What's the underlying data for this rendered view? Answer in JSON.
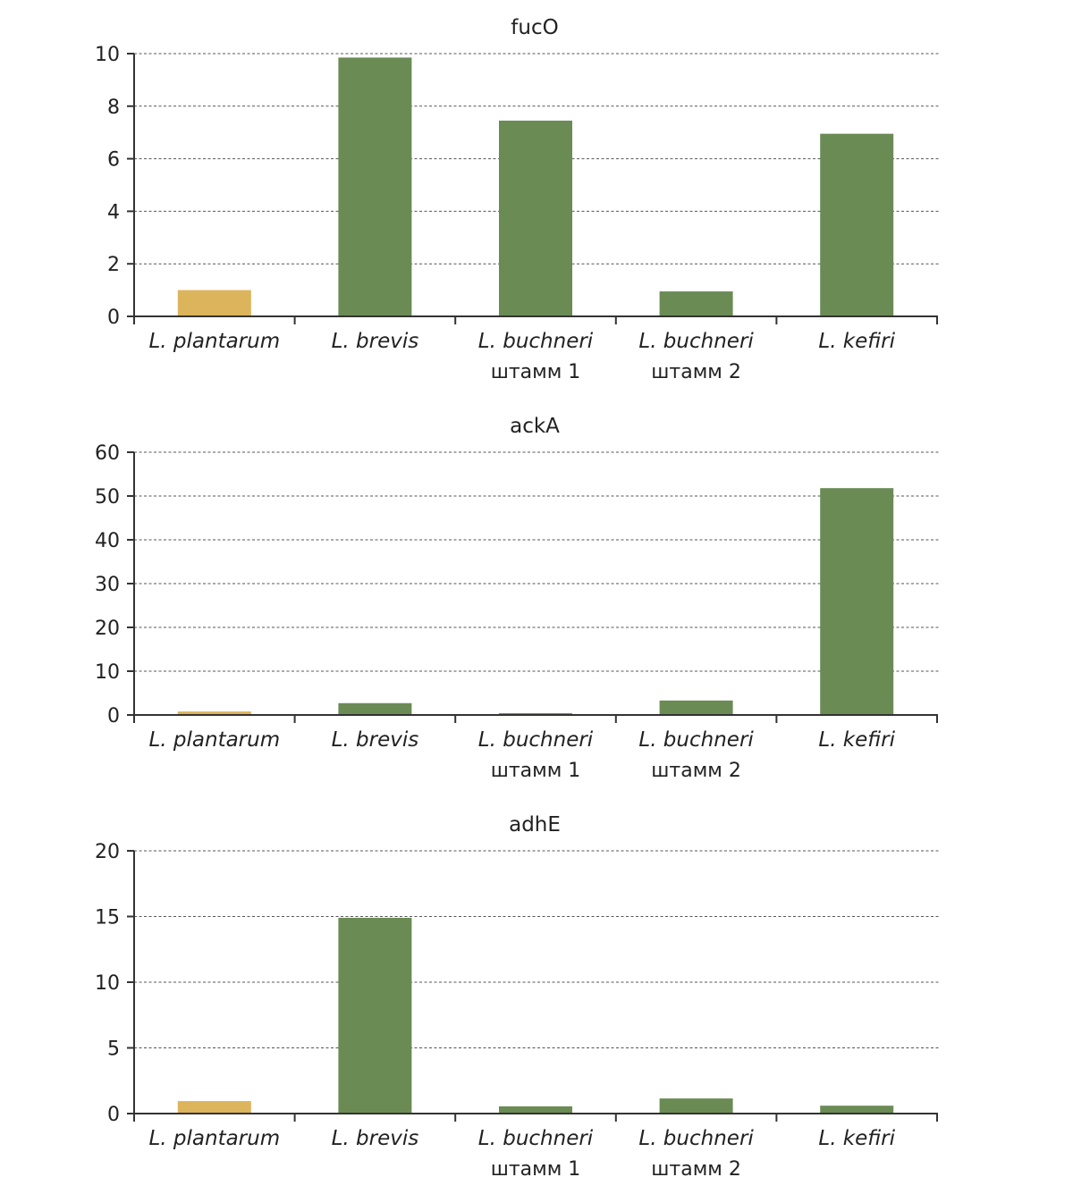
{
  "colors": {
    "reference": "#dcb45c",
    "other": "#6b8b55",
    "axis": "#333333",
    "grid": "#555555"
  },
  "chart_data": [
    {
      "type": "bar",
      "title": "fucO",
      "categories": [
        {
          "line1": "L. plantarum",
          "line2": ""
        },
        {
          "line1": "L. brevis",
          "line2": ""
        },
        {
          "line1": "L. buchneri",
          "line2": "штамм 1"
        },
        {
          "line1": "L. buchneri",
          "line2": "штамм 2"
        },
        {
          "line1": "L. kefiri",
          "line2": ""
        }
      ],
      "values": [
        1.0,
        9.85,
        7.45,
        0.95,
        6.95
      ],
      "ylim": [
        0,
        10
      ],
      "yticks": [
        "0",
        "2",
        "4",
        "6",
        "8",
        "10"
      ],
      "ytick_values": [
        0,
        2,
        4,
        6,
        8,
        10
      ],
      "grid": true
    },
    {
      "type": "bar",
      "title": "ackA",
      "categories": [
        {
          "line1": "L. plantarum",
          "line2": ""
        },
        {
          "line1": "L. brevis",
          "line2": ""
        },
        {
          "line1": "L. buchneri",
          "line2": "штамм 1"
        },
        {
          "line1": "L. buchneri",
          "line2": "штамм 2"
        },
        {
          "line1": "L. kefiri",
          "line2": ""
        }
      ],
      "values": [
        0.8,
        2.7,
        0.4,
        3.3,
        51.8
      ],
      "ylim": [
        0,
        60
      ],
      "yticks": [
        "0",
        "10",
        "20",
        "30",
        "40",
        "50",
        "60"
      ],
      "ytick_values": [
        0,
        10,
        20,
        30,
        40,
        50,
        60
      ],
      "grid": true
    },
    {
      "type": "bar",
      "title": "adhE",
      "categories": [
        {
          "line1": "L. plantarum",
          "line2": ""
        },
        {
          "line1": "L. brevis",
          "line2": ""
        },
        {
          "line1": "L. buchneri",
          "line2": "штамм 1"
        },
        {
          "line1": "L. buchneri",
          "line2": "штамм 2"
        },
        {
          "line1": "L. kefiri",
          "line2": ""
        }
      ],
      "values": [
        0.95,
        14.9,
        0.55,
        1.15,
        0.6
      ],
      "ylim": [
        0,
        20
      ],
      "yticks": [
        "0",
        "5",
        "10",
        "15",
        "20"
      ],
      "ytick_values": [
        0,
        5,
        10,
        15,
        20
      ],
      "grid": true
    }
  ]
}
